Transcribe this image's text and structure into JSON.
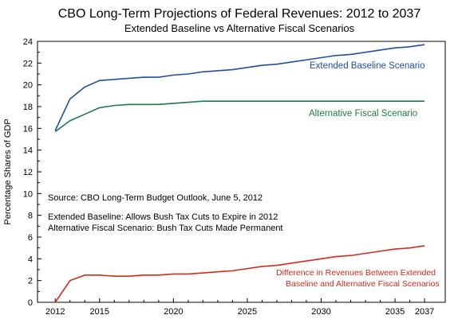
{
  "chart_data": {
    "type": "line",
    "title": "CBO Long-Term Projections of Federal Revenues:  2012 to 2037",
    "subtitle": "Extended Baseline vs Alternative Fiscal Scenarios",
    "xlabel": "",
    "ylabel": "Percentage Shares of GDP",
    "xlim": [
      2010.8,
      2038.4
    ],
    "ylim": [
      0,
      24
    ],
    "x_ticks": [
      2012,
      2015,
      2020,
      2025,
      2030,
      2035,
      2037
    ],
    "y_ticks": [
      0,
      2,
      4,
      6,
      8,
      10,
      12,
      14,
      16,
      18,
      20,
      22,
      24
    ],
    "grid": false,
    "x": [
      2012,
      2013,
      2014,
      2015,
      2016,
      2017,
      2018,
      2019,
      2020,
      2021,
      2022,
      2023,
      2024,
      2025,
      2026,
      2027,
      2028,
      2029,
      2030,
      2031,
      2032,
      2033,
      2034,
      2035,
      2036,
      2037
    ],
    "series": [
      {
        "name": "Extended Baseline Scenario",
        "color": "#1f4fa3",
        "values": [
          15.8,
          18.7,
          19.8,
          20.4,
          20.5,
          20.6,
          20.7,
          20.7,
          20.9,
          21.0,
          21.2,
          21.3,
          21.4,
          21.6,
          21.8,
          21.9,
          22.1,
          22.3,
          22.5,
          22.7,
          22.8,
          23.0,
          23.2,
          23.4,
          23.5,
          23.7
        ]
      },
      {
        "name": "Alternative Fiscal Scenario",
        "color": "#1e7a4a",
        "values": [
          15.7,
          16.7,
          17.3,
          17.9,
          18.1,
          18.2,
          18.2,
          18.2,
          18.3,
          18.4,
          18.5,
          18.5,
          18.5,
          18.5,
          18.5,
          18.5,
          18.5,
          18.5,
          18.5,
          18.5,
          18.5,
          18.5,
          18.5,
          18.5,
          18.5,
          18.5
        ]
      },
      {
        "name": "Difference in Revenues Between Extended Baseline and Alternative Fiscal Scenarios",
        "color": "#d42a1a",
        "values": [
          0.0,
          2.0,
          2.5,
          2.5,
          2.4,
          2.4,
          2.5,
          2.5,
          2.6,
          2.6,
          2.7,
          2.8,
          2.9,
          3.1,
          3.3,
          3.4,
          3.6,
          3.8,
          4.0,
          4.2,
          4.3,
          4.5,
          4.7,
          4.9,
          5.0,
          5.2
        ]
      }
    ],
    "series_labels": {
      "baseline": "Extended Baseline Scenario",
      "alternative": "Alternative Fiscal Scenario",
      "difference_line1": "Difference in Revenues Between Extended",
      "difference_line2": "Baseline and Alternative Fiscal Scenarios"
    },
    "annotations": {
      "source": "Source:  CBO Long-Term Budget Outlook, June 5, 2012",
      "note_line1": "Extended Baseline:  Allows Bush Tax Cuts to Expire in 2012",
      "note_line2": "Alternative Fiscal Scenario:  Bush Tax Cuts Made Permanent"
    }
  }
}
